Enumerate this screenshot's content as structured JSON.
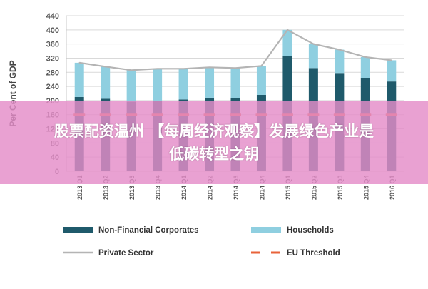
{
  "overlay": {
    "line1": "股票配资温州 【每周经济观察】发展绿色产业是",
    "line2": "低碳转型之钥"
  },
  "colors": {
    "non_financial": "#1f5a6b",
    "households": "#8fcfe0",
    "private_sector": "#b4b4b4",
    "eu_threshold": "#e8633a",
    "grid": "#d9d9d9",
    "banner": "#e48cc8"
  },
  "chart_data": {
    "type": "bar",
    "stacked": true,
    "title": "",
    "ylabel": "Per Cent of GDP",
    "xlabel": "",
    "ylim": [
      0,
      440
    ],
    "yticks": [
      0,
      40,
      80,
      120,
      160,
      200,
      240,
      280,
      320,
      360,
      400,
      440
    ],
    "grid": true,
    "legend_position": "bottom",
    "categories": [
      "2013 Q1",
      "2013 Q2",
      "2013 Q3",
      "2013 Q4",
      "2014 Q1",
      "2014 Q2",
      "2014 Q3",
      "2014 Q4",
      "2015 Q1",
      "2015 Q2",
      "2015 Q3",
      "2015 Q4",
      "2016 Q1"
    ],
    "series": [
      {
        "name": "Non-Financial Corporates",
        "kind": "bar",
        "values": [
          210,
          205,
          197,
          200,
          203,
          208,
          207,
          216,
          325,
          292,
          276,
          263,
          254
        ]
      },
      {
        "name": "Households",
        "kind": "bar",
        "values": [
          97,
          91,
          89,
          90,
          87,
          86,
          85,
          82,
          75,
          68,
          68,
          60,
          60
        ]
      },
      {
        "name": "Private Sector",
        "kind": "line",
        "values": [
          307,
          296,
          286,
          290,
          290,
          294,
          292,
          298,
          400,
          360,
          344,
          323,
          314
        ]
      },
      {
        "name": "EU Threshold",
        "kind": "dashed",
        "values": [
          160,
          160,
          160,
          160,
          160,
          160,
          160,
          160,
          160,
          160,
          160,
          160,
          160
        ]
      }
    ]
  }
}
